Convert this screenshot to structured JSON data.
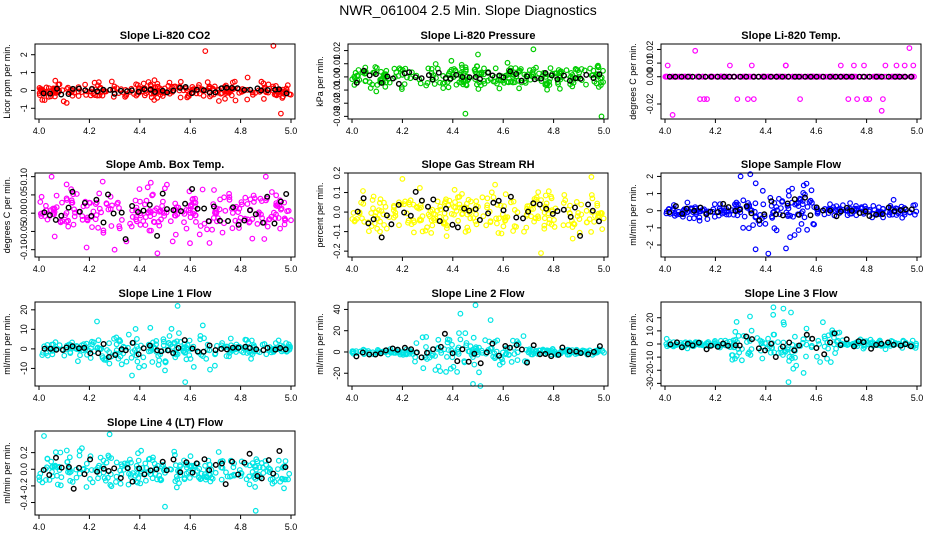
{
  "figure": {
    "title": "NWR_061004  2.5 Min. Slope Diagnostics"
  },
  "chart_data": [
    {
      "type": "scatter",
      "title": "Slope Li-820 CO2",
      "xlabel": "",
      "ylabel": "Licor ppm per min.",
      "xlim": [
        4.0,
        5.0
      ],
      "ylim": [
        -1.6,
        2.6
      ],
      "x_ticks": [
        "4.0",
        "4.2",
        "4.4",
        "4.6",
        "4.8",
        "5.0"
      ],
      "y_ticks": [
        "-1",
        "0",
        "1",
        "2"
      ],
      "y_tick_values": [
        -1,
        0,
        1,
        2
      ],
      "point_color": "#ff0000",
      "overlay_color": "#000000",
      "spread": 0.35,
      "overlay_spread": 0.15,
      "outliers": [
        [
          4.66,
          2.2
        ],
        [
          4.93,
          2.5
        ],
        [
          4.96,
          -1.3
        ],
        [
          4.11,
          -0.7
        ]
      ]
    },
    {
      "type": "scatter",
      "title": "Slope Li-820 Pressure",
      "xlabel": "",
      "ylabel": "kPa per min.",
      "xlim": [
        4.0,
        5.0
      ],
      "ylim": [
        -0.032,
        0.025
      ],
      "x_ticks": [
        "4.0",
        "4.2",
        "4.4",
        "4.6",
        "4.8",
        "5.0"
      ],
      "y_ticks": [
        "-0.03",
        "-0.02",
        "-0.01",
        "0.00",
        "0.01",
        "0.02"
      ],
      "y_tick_values": [
        -0.03,
        -0.02,
        -0.01,
        0,
        0.01,
        0.02
      ],
      "point_color": "#00cc00",
      "overlay_color": "#000000",
      "spread": 0.006,
      "overlay_spread": 0.004,
      "outliers": [
        [
          4.99,
          -0.03
        ],
        [
          4.45,
          -0.028
        ],
        [
          4.72,
          0.021
        ],
        [
          4.5,
          0.017
        ]
      ]
    },
    {
      "type": "scatter",
      "title": "Slope Li-820 Temp.",
      "xlabel": "",
      "ylabel": "degrees C per min.",
      "xlim": [
        4.0,
        5.0
      ],
      "ylim": [
        -0.031,
        0.024
      ],
      "x_ticks": [
        "4.0",
        "4.2",
        "4.4",
        "4.6",
        "4.8",
        "5.0"
      ],
      "y_ticks": [
        "-0.02",
        "0.00",
        "0.01",
        "0.02"
      ],
      "y_tick_values": [
        -0.02,
        0,
        0.01,
        0.02
      ],
      "point_color": "#ff00ff",
      "overlay_color": "#000000",
      "spread": 0.0,
      "overlay_spread": 0.0,
      "levels": [
        0.0082,
        0,
        -0.0164
      ],
      "outliers": [
        [
          4.03,
          -0.028
        ],
        [
          4.97,
          0.021
        ],
        [
          4.12,
          0.019
        ],
        [
          4.86,
          -0.025
        ]
      ]
    },
    {
      "type": "scatter",
      "title": "Slope Amb. Box Temp.",
      "xlabel": "",
      "ylabel": "degrees C per min.",
      "xlim": [
        4.0,
        5.0
      ],
      "ylim": [
        -0.12,
        0.11
      ],
      "x_ticks": [
        "4.0",
        "4.2",
        "4.4",
        "4.6",
        "4.8",
        "5.0"
      ],
      "y_ticks": [
        "-0.10",
        "-0.05",
        "0.00",
        "0.05",
        "0.10"
      ],
      "y_tick_values": [
        -0.1,
        -0.05,
        0,
        0.05,
        0.1
      ],
      "point_color": "#ff00ff",
      "overlay_color": "#000000",
      "spread": 0.045,
      "overlay_spread": 0.04,
      "outliers": [
        [
          4.47,
          -0.11
        ],
        [
          4.05,
          0.1
        ],
        [
          4.9,
          0.1
        ],
        [
          4.3,
          -0.1
        ]
      ]
    },
    {
      "type": "scatter",
      "title": "Slope Gas Stream RH",
      "xlabel": "",
      "ylabel": "percent per min.",
      "xlim": [
        4.0,
        5.0
      ],
      "ylim": [
        -0.23,
        0.2
      ],
      "x_ticks": [
        "4.0",
        "4.2",
        "4.4",
        "4.6",
        "4.8",
        "5.0"
      ],
      "y_ticks": [
        "-0.2",
        "-0.1",
        "0.0",
        "0.1",
        "0.2"
      ],
      "y_tick_values": [
        -0.2,
        -0.1,
        0,
        0.1,
        0.2
      ],
      "point_color": "#ffff00",
      "overlay_color": "#000000",
      "spread": 0.08,
      "overlay_spread": 0.07,
      "outliers": [
        [
          4.75,
          -0.21
        ],
        [
          4.95,
          0.18
        ],
        [
          4.2,
          0.17
        ]
      ]
    },
    {
      "type": "scatter",
      "title": "Slope Sample Flow",
      "xlabel": "",
      "ylabel": "ml/min per min.",
      "xlim": [
        4.0,
        5.0
      ],
      "ylim": [
        -2.7,
        2.2
      ],
      "x_ticks": [
        "4.0",
        "4.2",
        "4.4",
        "4.6",
        "4.8",
        "5.0"
      ],
      "y_ticks": [
        "-2",
        "-1",
        "0",
        "1",
        "2"
      ],
      "y_tick_values": [
        -2,
        -1,
        0,
        1,
        2
      ],
      "point_color": "#0000ff",
      "overlay_color": "#000000",
      "spread": 0.3,
      "overlay_spread": 0.3,
      "burst": [
        4.3,
        4.6,
        1.0
      ],
      "outliers": [
        [
          4.3,
          2.0
        ],
        [
          4.41,
          -2.5
        ],
        [
          4.48,
          -2.2
        ],
        [
          4.36,
          1.6
        ]
      ]
    },
    {
      "type": "scatter",
      "title": "Slope Line 1 Flow",
      "xlabel": "",
      "ylabel": "ml/min per min.",
      "xlim": [
        4.0,
        5.0
      ],
      "ylim": [
        -19,
        24
      ],
      "x_ticks": [
        "4.0",
        "4.2",
        "4.4",
        "4.6",
        "4.8",
        "5.0"
      ],
      "y_ticks": [
        "-10",
        "0",
        "10",
        "20"
      ],
      "y_tick_values": [
        -10,
        0,
        10,
        20
      ],
      "point_color": "#00e5e5",
      "overlay_color": "#000000",
      "spread": 3.0,
      "overlay_spread": 1.0,
      "burst": [
        4.2,
        4.7,
        5.0
      ],
      "outliers": [
        [
          4.55,
          22
        ],
        [
          4.23,
          14
        ],
        [
          4.58,
          -17
        ],
        [
          4.65,
          12
        ],
        [
          4.5,
          -11
        ]
      ]
    },
    {
      "type": "scatter",
      "title": "Slope Line 2 Flow",
      "xlabel": "",
      "ylabel": "ml/min per min.",
      "xlim": [
        4.0,
        5.0
      ],
      "ylim": [
        -32,
        47
      ],
      "x_ticks": [
        "4.0",
        "4.2",
        "4.4",
        "4.6",
        "4.8",
        "5.0"
      ],
      "y_ticks": [
        "-20",
        "0",
        "20",
        "40"
      ],
      "y_tick_values": [
        -20,
        0,
        20,
        40
      ],
      "point_color": "#00e5e5",
      "overlay_color": "#000000",
      "spread": 2.0,
      "overlay_spread": 4.0,
      "burst": [
        4.25,
        4.7,
        14.0
      ],
      "outliers": [
        [
          4.49,
          44
        ],
        [
          4.48,
          -30
        ],
        [
          4.43,
          36
        ],
        [
          4.55,
          30
        ],
        [
          4.35,
          -18
        ]
      ]
    },
    {
      "type": "scatter",
      "title": "Slope Line 3 Flow",
      "xlabel": "",
      "ylabel": "ml/min per min.",
      "xlim": [
        4.0,
        5.0
      ],
      "ylim": [
        -32,
        32
      ],
      "x_ticks": [
        "4.0",
        "4.2",
        "4.4",
        "4.6",
        "4.8",
        "5.0"
      ],
      "y_ticks": [
        "-30",
        "-20",
        "-10",
        "0",
        "10",
        "20"
      ],
      "y_tick_values": [
        -30,
        -20,
        -10,
        0,
        10,
        20
      ],
      "point_color": "#00e5e5",
      "overlay_color": "#000000",
      "spread": 2.0,
      "overlay_spread": 3.0,
      "burst": [
        4.25,
        4.7,
        11.0
      ],
      "outliers": [
        [
          4.49,
          -29
        ],
        [
          4.43,
          28
        ],
        [
          4.47,
          27
        ],
        [
          4.55,
          -22
        ],
        [
          4.5,
          24
        ]
      ]
    },
    {
      "type": "scatter",
      "title": "Slope Line 4 (LT) Flow",
      "xlabel": "",
      "ylabel": "ml/min per min.",
      "xlim": [
        4.0,
        5.0
      ],
      "ylim": [
        -0.55,
        0.46
      ],
      "x_ticks": [
        "4.0",
        "4.2",
        "4.4",
        "4.6",
        "4.8",
        "5.0"
      ],
      "y_ticks": [
        "-0.4",
        "-0.2",
        "0.0",
        "0.2"
      ],
      "y_tick_values": [
        -0.4,
        -0.2,
        0,
        0.2
      ],
      "point_color": "#00e5e5",
      "overlay_color": "#000000",
      "spread": 0.15,
      "overlay_spread": 0.15,
      "outliers": [
        [
          4.02,
          0.4
        ],
        [
          4.28,
          0.42
        ],
        [
          4.86,
          -0.5
        ],
        [
          4.5,
          -0.45
        ]
      ]
    }
  ]
}
